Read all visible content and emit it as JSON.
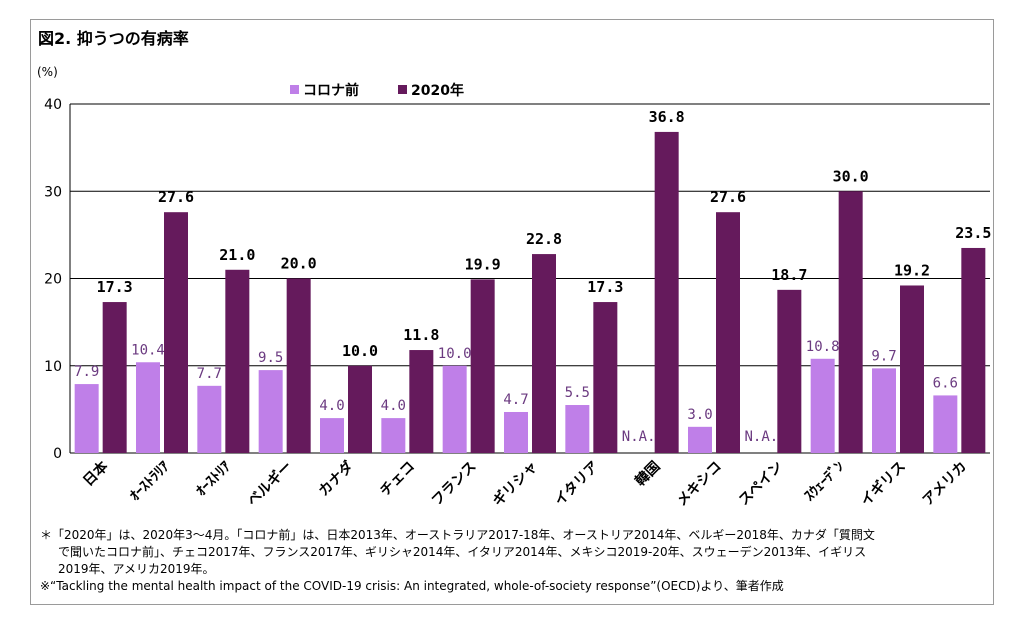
{
  "title": "図2. 抑うつの有病率",
  "notes": [
    "＊「2020年」は、2020年3～4月。「コロナ前」は、日本2013年、オーストラリア2017-18年、オーストリア2014年、ベルギー2018年、カナダ「質問文",
    "で聞いたコロナ前」、チェコ2017年、フランス2017年、ギリシャ2014年、イタリア2014年、メキシコ2019-20年、スウェーデン2013年、イギリス",
    "2019年、アメリカ2019年。",
    "※“Tackling the mental health impact of the COVID-19 crisis: An integrated, whole-of-society response”(OECD)より、筆者作成"
  ],
  "colors": {
    "pre": "#bf7fe8",
    "y2020": "#651a5c",
    "pre_label": "#6b3a80",
    "grid": "#000000"
  },
  "chart_data": {
    "type": "bar",
    "ylabel": "(%)",
    "ylim": [
      0,
      40
    ],
    "yticks": [
      0,
      10,
      20,
      30,
      40
    ],
    "grid": true,
    "legend_position": "top-left",
    "categories": [
      "日本",
      "オーストラリア",
      "オーストリア",
      "ベルギー",
      "カナダ",
      "チェコ",
      "フランス",
      "ギリシャ",
      "イタリア",
      "韓国",
      "メキシコ",
      "スペイン",
      "スウェーデン",
      "イギリス",
      "アメリカ"
    ],
    "category_labels": [
      "日本",
      "ｵｰｽﾄﾗﾘｱ",
      "ｵｰｽﾄﾘｱ",
      "ベルギー",
      "カナダ",
      "チェコ",
      "フランス",
      "ギリシャ",
      "イタリア",
      "韓国",
      "メキシコ",
      "スペイン",
      "ｽｳｪｰﾃﾞﾝ",
      "イギリス",
      "アメリカ"
    ],
    "series": [
      {
        "name": "コロナ前",
        "values": [
          7.9,
          10.4,
          7.7,
          9.5,
          4.0,
          4.0,
          10.0,
          4.7,
          5.5,
          null,
          3.0,
          null,
          10.8,
          9.7,
          6.6
        ],
        "labels": [
          "7.9",
          "10.4",
          "7.7",
          "9.5",
          "4.0",
          "4.0",
          "10.0",
          "4.7",
          "5.5",
          "N.A.",
          "3.0",
          "N.A.",
          "10.8",
          "9.7",
          "6.6"
        ]
      },
      {
        "name": "2020年",
        "values": [
          17.3,
          27.6,
          21.0,
          20.0,
          10.0,
          11.8,
          19.9,
          22.8,
          17.3,
          36.8,
          27.6,
          18.7,
          30.0,
          19.2,
          23.5
        ],
        "labels": [
          "17.3",
          "27.6",
          "21.0",
          "20.0",
          "10.0",
          "11.8",
          "19.9",
          "22.8",
          "17.3",
          "36.8",
          "27.6",
          "18.7",
          "30.0",
          "19.2",
          "23.5"
        ]
      }
    ]
  }
}
